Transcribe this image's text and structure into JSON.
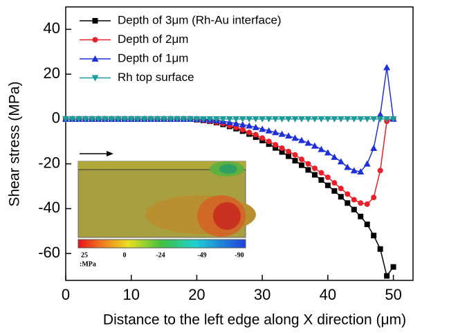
{
  "chart_data": {
    "type": "line",
    "xlabel": "Distance to the left edge along X direction (μm)",
    "ylabel": "Shear stress (MPa)",
    "x": [
      0,
      1,
      2,
      3,
      4,
      5,
      6,
      7,
      8,
      9,
      10,
      11,
      12,
      13,
      14,
      15,
      16,
      17,
      18,
      19,
      20,
      21,
      22,
      23,
      24,
      25,
      26,
      27,
      28,
      29,
      30,
      31,
      32,
      33,
      34,
      35,
      36,
      37,
      38,
      39,
      40,
      41,
      42,
      43,
      44,
      45,
      46,
      47,
      48,
      49,
      50
    ],
    "series": [
      {
        "name": "Depth of 3μm (Rh-Au interface)",
        "color": "#000000",
        "marker": "square",
        "values": [
          0,
          0,
          0,
          0,
          0,
          0,
          0,
          0,
          0,
          0,
          0,
          0,
          0,
          0,
          0,
          0,
          0,
          0,
          0,
          0,
          -0.3,
          -0.6,
          -1,
          -1.6,
          -2.4,
          -3.3,
          -4.3,
          -5.4,
          -6.7,
          -8.1,
          -9.6,
          -11.2,
          -12.9,
          -14.7,
          -16.6,
          -18.6,
          -20.6,
          -22.7,
          -24.9,
          -27.2,
          -29.6,
          -32.1,
          -34.7,
          -37.5,
          -40.4,
          -43.5,
          -47,
          -52,
          -58,
          -70,
          -66
        ]
      },
      {
        "name": "Depth of 2μm",
        "color": "#e8202a",
        "marker": "circle",
        "values": [
          0,
          0,
          0,
          0,
          0,
          0,
          0,
          0,
          0,
          0,
          0,
          0,
          0,
          0,
          0,
          0,
          0,
          0,
          0,
          0,
          -0.3,
          -0.6,
          -1,
          -1.5,
          -2,
          -3,
          -3.8,
          -4.8,
          -6,
          -7,
          -8.5,
          -10,
          -11.5,
          -13,
          -14.5,
          -16,
          -18,
          -20,
          -22,
          -24,
          -26,
          -28.5,
          -31,
          -33.5,
          -36,
          -37.5,
          -38,
          -35,
          -23,
          -1,
          0
        ]
      },
      {
        "name": "Depth of 1μm",
        "color": "#1f2fd6",
        "marker": "triangle",
        "values": [
          0,
          0,
          0,
          0,
          0,
          0,
          0,
          0,
          0,
          0,
          0,
          0,
          0,
          0,
          0,
          0,
          0,
          0,
          0,
          0,
          0,
          -0.2,
          -0.5,
          -0.7,
          -1,
          -1.5,
          -2,
          -2.5,
          -3,
          -3.7,
          -4.5,
          -5.2,
          -6,
          -6.7,
          -7.5,
          -8.5,
          -9.5,
          -10.7,
          -12,
          -13.5,
          -15,
          -17,
          -19,
          -21.5,
          -23,
          -23.5,
          -20,
          -13,
          2,
          23,
          0
        ]
      },
      {
        "name": "Rh top surface",
        "color": "#1e9a9a",
        "marker": "triangle-down",
        "values": [
          0,
          0,
          0,
          0,
          0,
          0,
          0,
          0,
          0,
          0,
          0,
          0,
          0,
          0,
          0,
          0,
          0,
          0,
          0,
          0,
          0,
          0,
          0,
          0,
          0,
          0,
          0,
          0,
          0,
          0,
          0,
          0,
          0,
          0,
          0,
          0,
          0,
          0,
          0,
          0,
          0,
          0,
          0,
          0,
          0,
          0,
          0,
          0,
          0,
          0,
          0
        ]
      }
    ],
    "xlim": [
      0,
      53
    ],
    "xticks": [
      0,
      10,
      20,
      30,
      40,
      50
    ],
    "ylim": [
      -72,
      50
    ],
    "yticks": [
      -60,
      -40,
      -20,
      0,
      20,
      40
    ],
    "legend": "upper-left",
    "inset": {
      "colorbar_labels": [
        "25",
        "0",
        "-24",
        "-49",
        "-90"
      ],
      "unit": ":MPa"
    }
  }
}
